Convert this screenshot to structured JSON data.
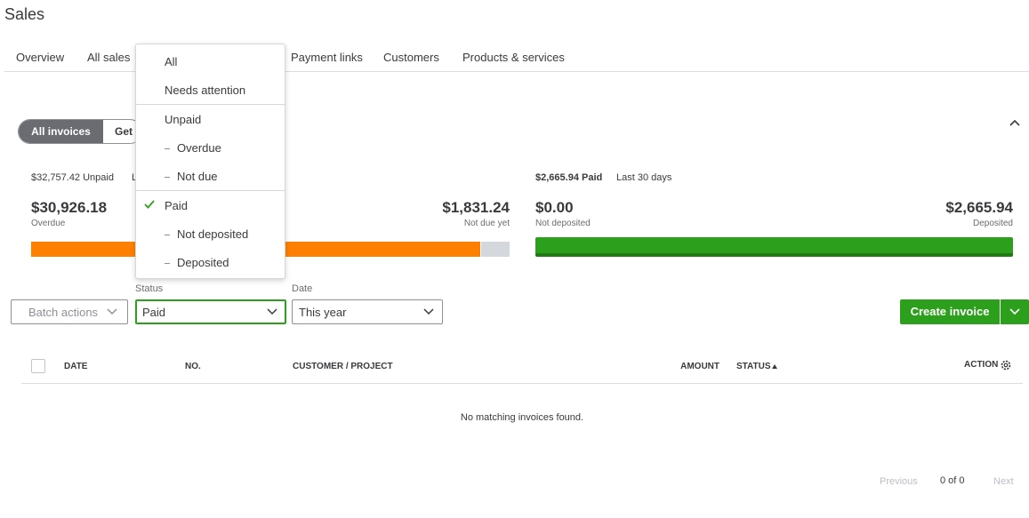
{
  "header": {
    "title": "Sales"
  },
  "tabs": [
    "Overview",
    "All sales",
    "Payment links",
    "Customers",
    "Products & services"
  ],
  "toggle": [
    "All invoices",
    "Get"
  ],
  "unpaid": {
    "summary": "$32,757.42 Unpaid",
    "period": "L",
    "left_amount": "$30,926.18",
    "left_label": "Overdue",
    "right_amount": "$1,831.24",
    "right_label": "Not due yet"
  },
  "paid": {
    "summary": "$2,665.94 Paid",
    "period": "Last 30 days",
    "left_amount": "$0.00",
    "left_label": "Not deposited",
    "right_amount": "$2,665.94",
    "right_label": "Deposited"
  },
  "filters": {
    "batch": "Batch actions",
    "status_label": "Status",
    "status_value": "Paid",
    "date_label": "Date",
    "date_value": "This year"
  },
  "create_button": "Create invoice",
  "table": {
    "columns": [
      "DATE",
      "NO.",
      "CUSTOMER / PROJECT",
      "AMOUNT",
      "STATUS",
      "ACTION"
    ],
    "empty": "No matching invoices found."
  },
  "pagination": {
    "previous": "Previous",
    "count": "0 of 0",
    "next": "Next"
  },
  "status_menu": {
    "items": [
      "All",
      "Needs attention",
      "Unpaid",
      "Overdue",
      "Not due",
      "Paid",
      "Not deposited",
      "Deposited"
    ]
  }
}
